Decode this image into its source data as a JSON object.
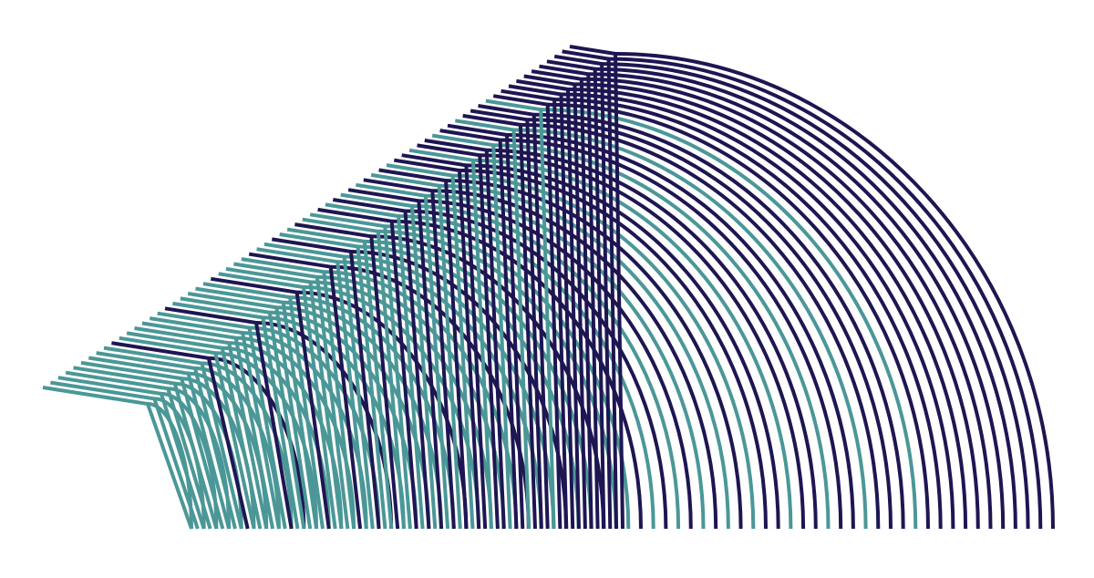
{
  "artwork": {
    "colors": {
      "background": "#ffffff",
      "navy": "#1e1652",
      "teal": "#4b9797"
    },
    "arc_count": 70,
    "color_sequence": [
      "teal",
      "teal",
      "teal",
      "teal",
      "teal",
      "teal",
      "teal",
      "teal",
      "teal",
      "navy",
      "teal",
      "teal",
      "teal",
      "teal",
      "teal",
      "teal",
      "navy",
      "teal",
      "teal",
      "teal",
      "teal",
      "teal",
      "navy",
      "teal",
      "teal",
      "teal",
      "teal",
      "navy",
      "teal",
      "teal",
      "navy",
      "teal",
      "teal",
      "navy",
      "teal",
      "teal",
      "navy",
      "teal",
      "navy",
      "teal",
      "navy",
      "teal",
      "navy",
      "teal",
      "navy",
      "teal",
      "navy",
      "navy",
      "teal",
      "navy",
      "navy",
      "teal",
      "navy",
      "navy",
      "teal",
      "navy",
      "navy",
      "navy",
      "teal",
      "navy",
      "navy",
      "navy",
      "navy",
      "navy",
      "navy",
      "navy",
      "navy",
      "navy",
      "navy",
      "navy"
    ]
  }
}
